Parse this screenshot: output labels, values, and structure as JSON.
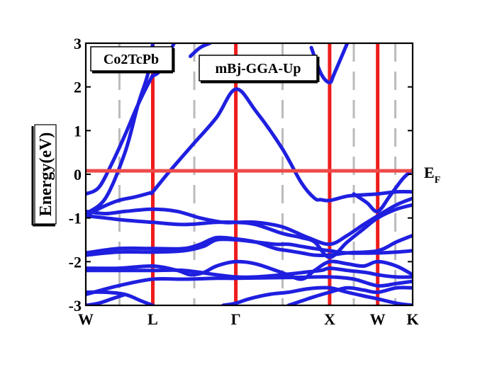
{
  "chart_data": {
    "type": "line",
    "title": "",
    "material_label": "Co2TcPb",
    "method_label": "mBj-GGA-Up",
    "ylabel": "Energy(eV)",
    "xlabel": "",
    "fermi_label": "E",
    "fermi_subscript": "F",
    "ylim": [
      -3,
      3
    ],
    "yticks": [
      -3,
      -2,
      -1,
      0,
      1,
      2,
      3
    ],
    "ytick_labels": [
      "-3",
      "-2",
      "-1",
      "0",
      "1",
      "2",
      "3"
    ],
    "xlim": [
      0,
      1
    ],
    "kpoints": [
      {
        "label": "W",
        "x": 0.0
      },
      {
        "label": "L",
        "x": 0.205
      },
      {
        "label": "Γ",
        "x": 0.459
      },
      {
        "label": "X",
        "x": 0.746
      },
      {
        "label": "W",
        "x": 0.893
      },
      {
        "label": "K",
        "x": 1.0
      }
    ],
    "dashed_lines_x": [
      0.103,
      0.332,
      0.602,
      0.82,
      0.947
    ],
    "fermi_level": 0.08,
    "grid": false,
    "colors": {
      "bands": "#1f1fe0",
      "kpoint_lines": "#ee1c1c",
      "fermi_line": "#ee4a4a",
      "dashed_lines": "#bbbbbb"
    },
    "series": [
      {
        "x": [
          0.0,
          0.06,
          0.12,
          0.16,
          0.19,
          0.205
        ],
        "values": [
          -0.9,
          -0.55,
          0.5,
          1.6,
          2.3,
          3.0
        ]
      },
      {
        "x": [
          0.0,
          0.04,
          0.08,
          0.12,
          0.16,
          0.2,
          0.205,
          0.23,
          0.27
        ],
        "values": [
          -0.45,
          -0.3,
          0.25,
          0.9,
          1.6,
          2.2,
          2.25,
          2.4,
          3.0
        ]
      },
      {
        "x": [
          0.0,
          0.05,
          0.1,
          0.15,
          0.2,
          0.205,
          0.26,
          0.33,
          0.4,
          0.459,
          0.52,
          0.6,
          0.66,
          0.7,
          0.72,
          0.746,
          0.8,
          0.85,
          0.893,
          0.95,
          1.0
        ],
        "values": [
          -0.95,
          -0.75,
          -0.6,
          -0.52,
          -0.42,
          -0.4,
          0.1,
          0.7,
          1.3,
          1.95,
          1.45,
          0.6,
          -0.2,
          -0.55,
          -0.58,
          -0.6,
          -0.5,
          -0.47,
          -0.45,
          -0.4,
          -0.4
        ]
      },
      {
        "x": [
          0.32,
          0.35,
          0.38
        ],
        "values": [
          2.7,
          2.9,
          3.0
        ]
      },
      {
        "x": [
          0.69,
          0.72,
          0.746,
          0.76,
          0.8
        ],
        "values": [
          2.9,
          2.3,
          2.1,
          2.3,
          3.0
        ]
      },
      {
        "x": [
          0.82,
          0.86,
          0.893,
          0.93,
          0.97,
          1.0
        ],
        "values": [
          -0.45,
          -0.65,
          -0.85,
          -0.5,
          -0.1,
          0.1
        ]
      },
      {
        "x": [
          0.0,
          0.06,
          0.12,
          0.205,
          0.28,
          0.35,
          0.42,
          0.459,
          0.52,
          0.6,
          0.68,
          0.746,
          0.8,
          0.85,
          0.893,
          0.95,
          1.0
        ],
        "values": [
          -0.85,
          -0.9,
          -0.85,
          -0.8,
          -0.85,
          -1.0,
          -1.1,
          -1.1,
          -1.1,
          -1.2,
          -1.45,
          -1.6,
          -1.4,
          -1.15,
          -0.95,
          -0.7,
          -0.55
        ]
      },
      {
        "x": [
          0.0,
          0.06,
          0.12,
          0.205,
          0.3,
          0.4,
          0.459,
          0.52,
          0.6,
          0.66,
          0.7,
          0.746,
          0.8,
          0.85,
          0.893,
          0.95,
          1.0
        ],
        "values": [
          -0.95,
          -1.0,
          -1.05,
          -1.1,
          -1.15,
          -1.1,
          -1.1,
          -1.15,
          -1.35,
          -1.45,
          -1.55,
          -1.9,
          -1.55,
          -1.25,
          -1.0,
          -0.8,
          -0.7
        ]
      },
      {
        "x": [
          0.0,
          0.1,
          0.205,
          0.3,
          0.35,
          0.4,
          0.459,
          0.52,
          0.58,
          0.62,
          0.66,
          0.7,
          0.746,
          0.8,
          0.893,
          0.95,
          1.0
        ],
        "values": [
          -1.8,
          -1.7,
          -1.7,
          -1.7,
          -1.6,
          -1.45,
          -1.48,
          -1.55,
          -1.7,
          -1.75,
          -1.8,
          -1.85,
          -1.85,
          -1.8,
          -1.75,
          -1.55,
          -1.4
        ]
      },
      {
        "x": [
          0.0,
          0.1,
          0.205,
          0.3,
          0.36,
          0.4,
          0.459,
          0.52,
          0.58,
          0.62,
          0.66,
          0.7,
          0.746,
          0.8,
          0.893,
          0.95,
          1.0
        ],
        "values": [
          -1.85,
          -1.78,
          -1.78,
          -1.75,
          -1.65,
          -1.5,
          -1.5,
          -1.55,
          -1.6,
          -1.6,
          -1.65,
          -1.7,
          -1.75,
          -1.8,
          -1.8,
          -1.78,
          -1.75
        ]
      },
      {
        "x": [
          0.0,
          0.1,
          0.205,
          0.28,
          0.32,
          0.36,
          0.4,
          0.459,
          0.52,
          0.6,
          0.66,
          0.7,
          0.746,
          0.8,
          0.85,
          0.893,
          0.95,
          1.0
        ],
        "values": [
          -2.15,
          -2.15,
          -2.1,
          -2.2,
          -2.3,
          -2.25,
          -2.1,
          -2.0,
          -2.05,
          -2.25,
          -2.4,
          -2.2,
          -2.0,
          -2.05,
          -2.1,
          -2.0,
          -2.1,
          -2.3
        ]
      },
      {
        "x": [
          0.0,
          0.1,
          0.205,
          0.3,
          0.4,
          0.459,
          0.52,
          0.6,
          0.66,
          0.72,
          0.746,
          0.8,
          0.86,
          0.893,
          0.95,
          1.0
        ],
        "values": [
          -2.2,
          -2.2,
          -2.2,
          -2.2,
          -2.3,
          -2.35,
          -2.35,
          -2.3,
          -2.25,
          -2.2,
          -2.15,
          -2.2,
          -2.25,
          -2.3,
          -2.35,
          -2.35
        ]
      },
      {
        "x": [
          0.0,
          0.1,
          0.205,
          0.3,
          0.4,
          0.459,
          0.55,
          0.65,
          0.746,
          0.82,
          0.893,
          0.95,
          1.0
        ],
        "values": [
          -2.75,
          -2.55,
          -2.4,
          -2.4,
          -2.38,
          -2.38,
          -2.37,
          -2.36,
          -2.35,
          -2.4,
          -2.55,
          -2.5,
          -2.45
        ]
      },
      {
        "x": [
          0.0,
          0.06,
          0.12,
          0.17,
          0.205
        ],
        "values": [
          -2.7,
          -2.7,
          -2.75,
          -2.9,
          -3.0
        ]
      },
      {
        "x": [
          0.0,
          0.04,
          0.08,
          0.12
        ],
        "values": [
          -3.0,
          -2.95,
          -2.85,
          -2.75
        ]
      },
      {
        "x": [
          0.42,
          0.459,
          0.5,
          0.56,
          0.62,
          0.68,
          0.746,
          0.8,
          0.86,
          0.893,
          0.95,
          1.0
        ],
        "values": [
          -3.0,
          -2.95,
          -2.85,
          -2.75,
          -2.7,
          -2.62,
          -2.6,
          -2.7,
          -2.8,
          -2.85,
          -2.95,
          -3.0
        ]
      },
      {
        "x": [
          0.62,
          0.66,
          0.7,
          0.746,
          0.8,
          0.85,
          0.893,
          0.95,
          1.0
        ],
        "values": [
          -3.0,
          -2.9,
          -2.8,
          -2.7,
          -2.6,
          -2.65,
          -2.7,
          -2.6,
          -2.6
        ]
      }
    ]
  }
}
